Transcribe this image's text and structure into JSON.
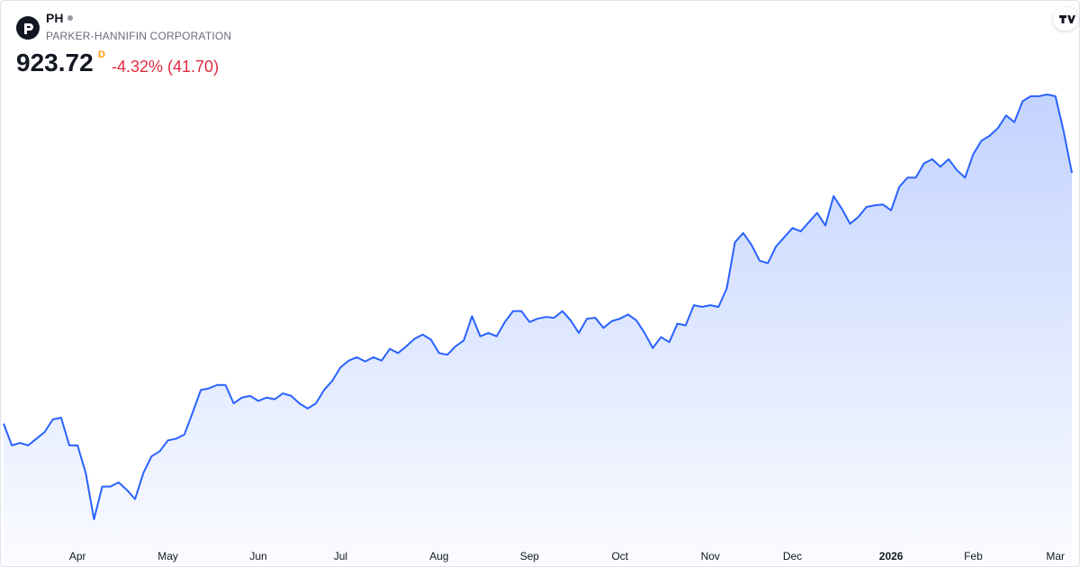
{
  "header": {
    "ticker": "PH",
    "company": "PARKER-HANNIFIN CORPORATION",
    "price": "923.72",
    "interval": "D",
    "change": "-4.32% (41.70)"
  },
  "chart_data": {
    "type": "area",
    "color": "#2962ff",
    "categories": [
      null,
      null,
      null,
      null,
      null,
      null,
      null,
      null,
      null,
      "Apr",
      null,
      null,
      null,
      null,
      null,
      null,
      null,
      null,
      null,
      null,
      "May",
      null,
      null,
      null,
      null,
      null,
      null,
      null,
      null,
      null,
      null,
      "Jun",
      null,
      null,
      null,
      null,
      null,
      null,
      null,
      null,
      null,
      "Jul",
      null,
      null,
      null,
      null,
      null,
      null,
      null,
      null,
      null,
      null,
      null,
      "Aug",
      null,
      null,
      null,
      null,
      null,
      null,
      null,
      null,
      null,
      null,
      "Sep",
      null,
      null,
      null,
      null,
      null,
      null,
      null,
      null,
      null,
      null,
      "Oct",
      null,
      null,
      null,
      null,
      null,
      null,
      null,
      null,
      null,
      null,
      "Nov",
      null,
      null,
      null,
      null,
      null,
      null,
      null,
      null,
      null,
      "Dec",
      null,
      null,
      null,
      null,
      null,
      null,
      null,
      null,
      null,
      null,
      null,
      "2026",
      null,
      null,
      null,
      null,
      null,
      null,
      null,
      null,
      null,
      "Feb",
      null,
      null,
      null,
      null,
      null,
      null,
      null,
      null,
      null,
      "Mar",
      null,
      null
    ],
    "values": [
      625,
      599,
      602,
      599,
      607,
      615,
      630,
      632,
      599,
      599,
      566,
      511,
      550,
      550,
      555,
      546,
      535,
      566,
      586,
      592,
      605,
      607,
      612,
      638,
      665,
      667,
      671,
      671,
      649,
      656,
      658,
      652,
      656,
      654,
      661,
      658,
      649,
      643,
      649,
      665,
      676,
      692,
      700,
      704,
      699,
      704,
      700,
      714,
      709,
      717,
      726,
      731,
      725,
      709,
      707,
      717,
      724,
      753,
      729,
      733,
      729,
      746,
      759,
      759,
      746,
      750,
      752,
      751,
      759,
      748,
      733,
      750,
      751,
      739,
      747,
      750,
      755,
      748,
      733,
      715,
      728,
      722,
      744,
      742,
      766,
      764,
      766,
      764,
      786,
      841,
      852,
      838,
      819,
      816,
      836,
      847,
      858,
      854,
      865,
      876,
      861,
      896,
      881,
      863,
      871,
      883,
      885,
      886,
      879,
      907,
      918,
      918,
      935,
      940,
      931,
      940,
      927,
      918,
      946,
      962,
      968,
      977,
      992,
      984,
      1009,
      1015,
      1015,
      1017,
      1015,
      973,
      923.72
    ]
  }
}
